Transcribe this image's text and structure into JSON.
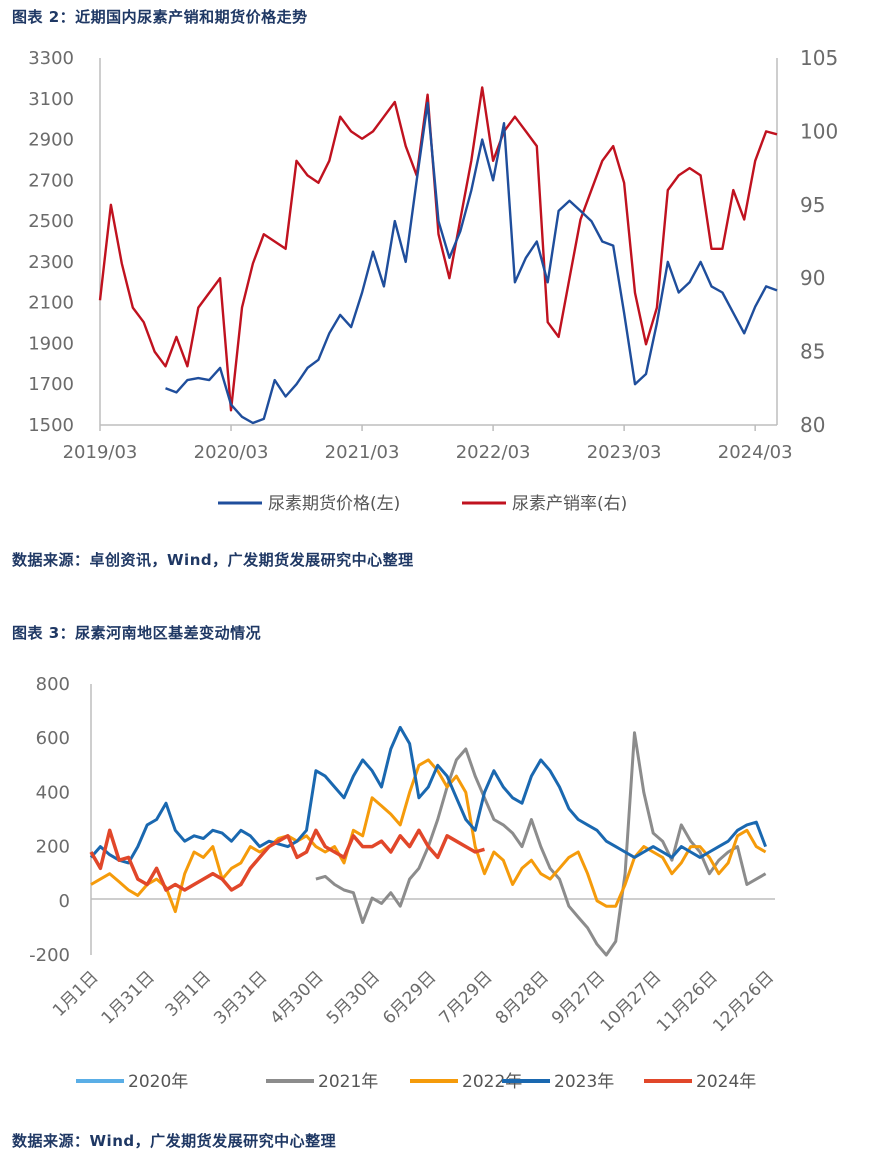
{
  "figure2": {
    "title": "图表 2：近期国内尿素产销和期货价格走势",
    "source": "数据来源：卓创资讯，Wind，广发期货发展研究中心整理"
  },
  "figure3": {
    "title": "图表 3：尿素河南地区基差变动情况",
    "source": "数据来源：Wind，广发期货发展研究中心整理"
  },
  "chart_data": [
    {
      "type": "line",
      "title": "近期国内尿素产销和期货价格走势",
      "x_ticks": [
        "2019/03",
        "2020/03",
        "2021/03",
        "2022/03",
        "2023/03",
        "2024/03"
      ],
      "ylim_left": [
        1500,
        3300
      ],
      "yticks_left": [
        "1500",
        "1700",
        "1900",
        "2100",
        "2300",
        "2500",
        "2700",
        "2900",
        "3100",
        "3300"
      ],
      "ylim_right": [
        80,
        105
      ],
      "yticks_right": [
        "80",
        "85",
        "90",
        "95",
        "100",
        "105"
      ],
      "grid": false,
      "legend_position": "bottom",
      "series": [
        {
          "name": "尿素期货价格(左)",
          "axis": "left",
          "color": "#1f4e9c",
          "x": [
            "2019/09",
            "2019/10",
            "2019/11",
            "2019/12",
            "2020/01",
            "2020/02",
            "2020/03",
            "2020/04",
            "2020/05",
            "2020/06",
            "2020/07",
            "2020/08",
            "2020/09",
            "2020/10",
            "2020/11",
            "2020/12",
            "2021/01",
            "2021/02",
            "2021/03",
            "2021/04",
            "2021/05",
            "2021/06",
            "2021/07",
            "2021/08",
            "2021/09",
            "2021/10",
            "2021/11",
            "2021/12",
            "2022/01",
            "2022/02",
            "2022/03",
            "2022/04",
            "2022/05",
            "2022/06",
            "2022/07",
            "2022/08",
            "2022/09",
            "2022/10",
            "2022/11",
            "2022/12",
            "2023/01",
            "2023/02",
            "2023/03",
            "2023/04",
            "2023/05",
            "2023/06",
            "2023/07",
            "2023/08",
            "2023/09",
            "2023/10",
            "2023/11",
            "2023/12",
            "2024/01",
            "2024/02",
            "2024/03",
            "2024/04",
            "2024/05"
          ],
          "values": [
            1680,
            1660,
            1720,
            1730,
            1720,
            1780,
            1600,
            1540,
            1510,
            1530,
            1720,
            1640,
            1700,
            1780,
            1820,
            1950,
            2040,
            1980,
            2150,
            2350,
            2180,
            2500,
            2300,
            2700,
            3080,
            2500,
            2320,
            2450,
            2650,
            2900,
            2700,
            2980,
            2200,
            2320,
            2400,
            2200,
            2550,
            2600,
            2550,
            2500,
            2400,
            2380,
            2050,
            1700,
            1750,
            2000,
            2300,
            2150,
            2200,
            2300,
            2180,
            2150,
            2050,
            1950,
            2080,
            2180,
            2160
          ]
        },
        {
          "name": "尿素产销率(右)",
          "axis": "right",
          "color": "#c0121f",
          "x": [
            "2019/03",
            "2019/04",
            "2019/05",
            "2019/06",
            "2019/07",
            "2019/08",
            "2019/09",
            "2019/10",
            "2019/11",
            "2019/12",
            "2020/01",
            "2020/02",
            "2020/03",
            "2020/04",
            "2020/05",
            "2020/06",
            "2020/07",
            "2020/08",
            "2020/09",
            "2020/10",
            "2020/11",
            "2020/12",
            "2021/01",
            "2021/02",
            "2021/03",
            "2021/04",
            "2021/05",
            "2021/06",
            "2021/07",
            "2021/08",
            "2021/09",
            "2021/10",
            "2021/11",
            "2021/12",
            "2022/01",
            "2022/02",
            "2022/03",
            "2022/04",
            "2022/05",
            "2022/06",
            "2022/07",
            "2022/08",
            "2022/09",
            "2022/10",
            "2022/11",
            "2022/12",
            "2023/01",
            "2023/02",
            "2023/03",
            "2023/04",
            "2023/05",
            "2023/06",
            "2023/07",
            "2023/08",
            "2023/09",
            "2023/10",
            "2023/11",
            "2023/12",
            "2024/01",
            "2024/02",
            "2024/03",
            "2024/04",
            "2024/05"
          ],
          "values": [
            88.5,
            95,
            91,
            88,
            87,
            85,
            84,
            86,
            84,
            88,
            89,
            90,
            81,
            88,
            91,
            93,
            92.5,
            92,
            98,
            97,
            96.5,
            98,
            101,
            100,
            99.5,
            100,
            101,
            102,
            99,
            97,
            102.5,
            93,
            90,
            94,
            98,
            103,
            98,
            100,
            101,
            100,
            99,
            87,
            86,
            90,
            94,
            96,
            98,
            99,
            96.5,
            89,
            85.5,
            88,
            96,
            97,
            97.5,
            97,
            92,
            92,
            96,
            94,
            98,
            100,
            99.8
          ]
        }
      ]
    },
    {
      "type": "line",
      "title": "尿素河南地区基差变动情况",
      "x_ticks": [
        "1月1日",
        "1月31日",
        "3月1日",
        "3月31日",
        "4月30日",
        "5月30日",
        "6月29日",
        "7月29日",
        "8月28日",
        "9月27日",
        "10月27日",
        "11月26日",
        "12月26日"
      ],
      "ylim": [
        -200,
        800
      ],
      "yticks": [
        "-200",
        "0",
        "200",
        "400",
        "600",
        "800"
      ],
      "grid": false,
      "legend_position": "bottom",
      "series": [
        {
          "name": "2020年",
          "color": "#5aaee6",
          "x": [],
          "values": []
        },
        {
          "name": "2021年",
          "color": "#8c8c8c",
          "x": [
            120,
            125,
            130,
            135,
            140,
            145,
            150,
            155,
            160,
            165,
            170,
            175,
            180,
            185,
            190,
            195,
            200,
            205,
            210,
            215,
            220,
            225,
            230,
            235,
            240,
            245,
            250,
            255,
            260,
            265,
            270,
            275,
            280,
            285,
            290,
            295,
            300,
            305,
            310,
            315,
            320,
            325,
            330,
            335,
            340,
            345,
            350,
            355,
            360
          ],
          "values": [
            80,
            90,
            60,
            40,
            30,
            -80,
            10,
            -10,
            30,
            -20,
            80,
            120,
            200,
            300,
            420,
            520,
            560,
            460,
            380,
            300,
            280,
            250,
            200,
            300,
            200,
            120,
            80,
            -20,
            -60,
            -100,
            -160,
            -200,
            -150,
            100,
            620,
            400,
            250,
            220,
            150,
            280,
            220,
            180,
            100,
            150,
            180,
            200,
            60,
            80,
            100
          ]
        },
        {
          "name": "2022年",
          "color": "#f59b0b",
          "x": [
            0,
            5,
            10,
            15,
            20,
            25,
            30,
            35,
            40,
            45,
            50,
            55,
            60,
            65,
            70,
            75,
            80,
            85,
            90,
            95,
            100,
            105,
            110,
            115,
            120,
            125,
            130,
            135,
            140,
            145,
            150,
            155,
            160,
            165,
            170,
            175,
            180,
            185,
            190,
            195,
            200,
            205,
            210,
            215,
            220,
            225,
            230,
            235,
            240,
            245,
            250,
            255,
            260,
            265,
            270,
            275,
            280,
            285,
            290,
            295,
            300,
            305,
            310,
            315,
            320,
            325,
            330,
            335,
            340,
            345,
            350,
            355,
            360
          ],
          "values": [
            60,
            80,
            100,
            70,
            40,
            20,
            60,
            80,
            50,
            -40,
            100,
            180,
            160,
            200,
            80,
            120,
            140,
            200,
            180,
            200,
            230,
            240,
            220,
            240,
            200,
            180,
            200,
            140,
            260,
            240,
            380,
            350,
            320,
            280,
            400,
            500,
            520,
            480,
            420,
            460,
            400,
            200,
            100,
            180,
            150,
            60,
            120,
            150,
            100,
            80,
            120,
            160,
            180,
            100,
            0,
            -20,
            -20,
            60,
            160,
            200,
            180,
            160,
            100,
            140,
            200,
            200,
            160,
            100,
            140,
            240,
            260,
            200,
            180
          ]
        },
        {
          "name": "2023年",
          "color": "#1a68b0",
          "x": [
            0,
            5,
            10,
            15,
            20,
            25,
            30,
            35,
            40,
            45,
            50,
            55,
            60,
            65,
            70,
            75,
            80,
            85,
            90,
            95,
            100,
            105,
            110,
            115,
            120,
            125,
            130,
            135,
            140,
            145,
            150,
            155,
            160,
            165,
            170,
            175,
            180,
            185,
            190,
            195,
            200,
            205,
            210,
            215,
            220,
            225,
            230,
            235,
            240,
            245,
            250,
            255,
            260,
            265,
            270,
            275,
            280,
            285,
            290,
            295,
            300,
            305,
            310,
            315,
            320,
            325,
            330,
            335,
            340,
            345,
            350,
            355,
            360
          ],
          "values": [
            160,
            200,
            170,
            150,
            140,
            200,
            280,
            300,
            360,
            260,
            220,
            240,
            230,
            260,
            250,
            220,
            260,
            240,
            200,
            220,
            210,
            200,
            220,
            260,
            480,
            460,
            420,
            380,
            460,
            520,
            480,
            420,
            560,
            640,
            580,
            380,
            420,
            500,
            460,
            380,
            300,
            260,
            400,
            480,
            420,
            380,
            360,
            460,
            520,
            480,
            420,
            340,
            300,
            280,
            260,
            220,
            200,
            180,
            160,
            180,
            200,
            180,
            160,
            200,
            180,
            160,
            180,
            200,
            220,
            260,
            280,
            290,
            200
          ]
        },
        {
          "name": "2024年",
          "color": "#e1472a",
          "x": [
            0,
            5,
            10,
            15,
            20,
            25,
            30,
            35,
            40,
            45,
            50,
            55,
            60,
            65,
            70,
            75,
            80,
            85,
            90,
            95,
            100,
            105,
            110,
            115,
            120,
            125,
            130,
            135,
            140,
            145,
            150,
            155,
            160,
            165,
            170,
            175,
            180,
            185,
            190,
            195,
            200,
            205,
            210
          ],
          "values": [
            180,
            120,
            260,
            150,
            160,
            80,
            60,
            120,
            40,
            60,
            40,
            60,
            80,
            100,
            80,
            40,
            60,
            120,
            160,
            200,
            220,
            240,
            160,
            180,
            260,
            200,
            180,
            160,
            240,
            200,
            200,
            220,
            180,
            240,
            200,
            260,
            200,
            160,
            240,
            220,
            200,
            180,
            190
          ]
        }
      ]
    }
  ]
}
